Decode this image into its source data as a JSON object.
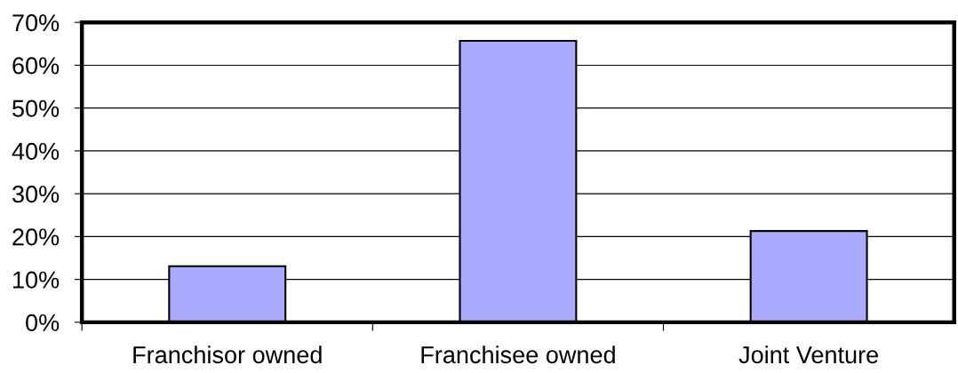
{
  "chart_data": {
    "type": "bar",
    "categories": [
      "Franchisor owned",
      "Franchisee owned",
      "Joint Venture"
    ],
    "values": [
      13.1,
      65.7,
      21.3
    ],
    "color": "#aaaaff",
    "ylim": [
      0,
      70
    ],
    "yticks": [
      {
        "value": 0,
        "label": "0%"
      },
      {
        "value": 10,
        "label": "10%"
      },
      {
        "value": 20,
        "label": "20%"
      },
      {
        "value": 30,
        "label": "30%"
      },
      {
        "value": 40,
        "label": "40%"
      },
      {
        "value": 50,
        "label": "50%"
      },
      {
        "value": 60,
        "label": "60%"
      },
      {
        "value": 70,
        "label": "70%"
      }
    ],
    "grid": "y",
    "legend": false
  }
}
